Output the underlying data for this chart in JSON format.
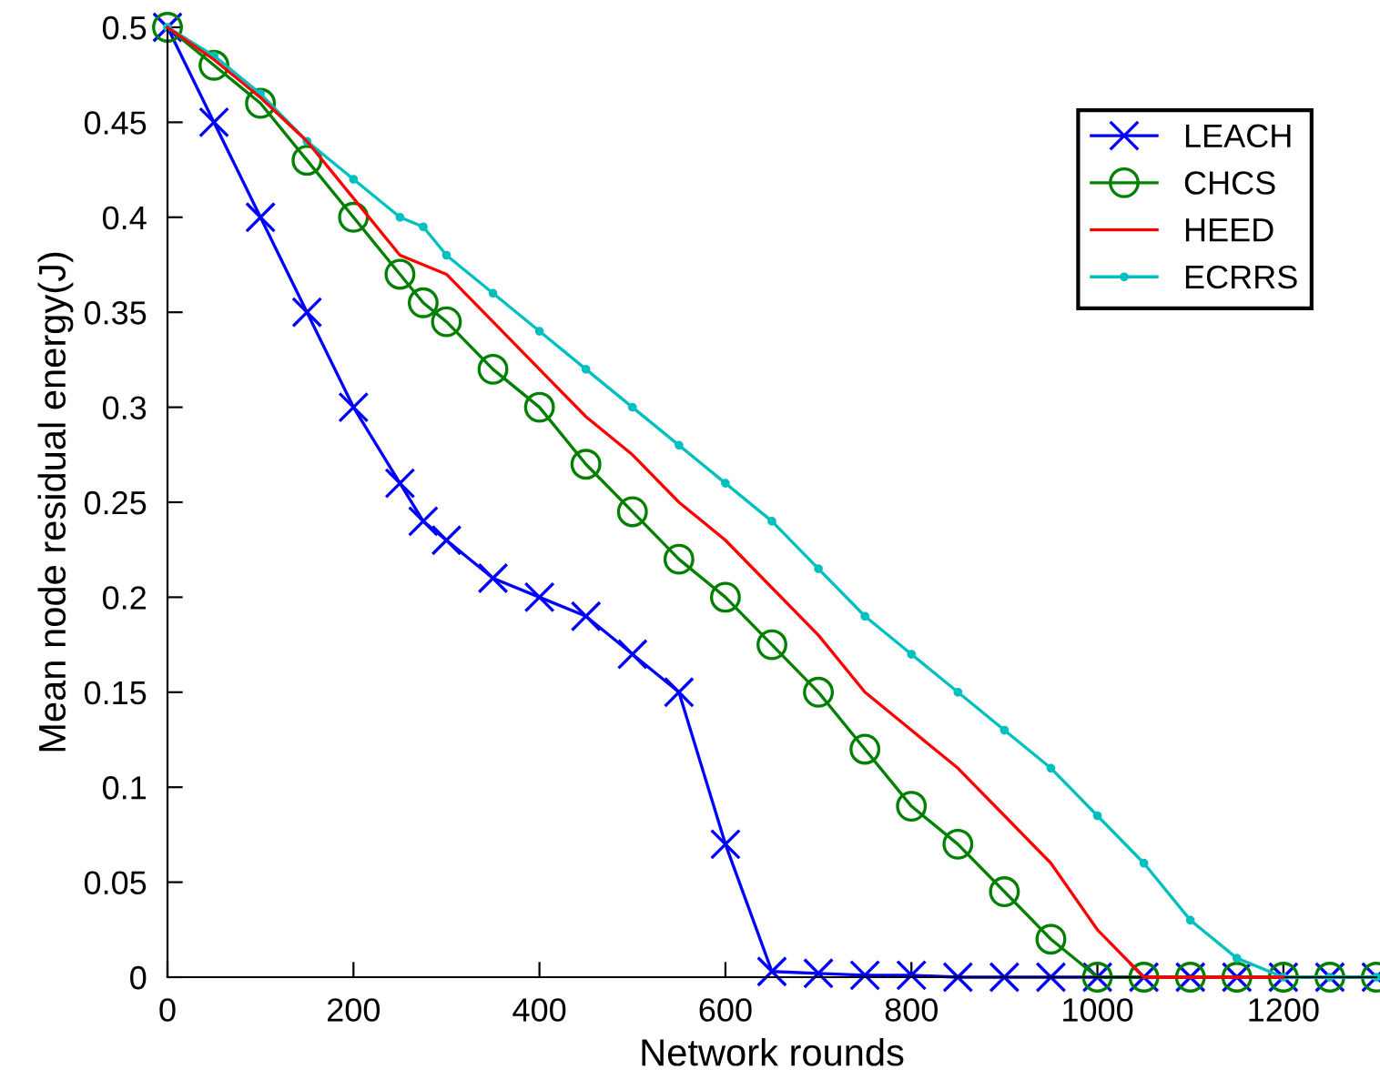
{
  "chart_data": {
    "type": "line",
    "xlabel": "Network rounds",
    "ylabel": "Mean node residual energy(J)",
    "xlim": [
      0,
      1300
    ],
    "xticks": [
      0,
      200,
      400,
      600,
      800,
      1000,
      1200
    ],
    "ylim": [
      0,
      0.5
    ],
    "yticks": [
      0,
      0.05,
      0.1,
      0.15,
      0.2,
      0.25,
      0.3,
      0.35,
      0.4,
      0.45,
      0.5
    ],
    "grid": false,
    "legend": "top right",
    "series": [
      {
        "name": "LEACH",
        "color": "#0000ff",
        "marker": "cross",
        "x": [
          0,
          50,
          100,
          150,
          200,
          250,
          275,
          300,
          350,
          400,
          450,
          500,
          550,
          600,
          650,
          700,
          750,
          800,
          850,
          900,
          950,
          1000,
          1050,
          1100,
          1150,
          1200,
          1250,
          1300
        ],
        "values": [
          0.5,
          0.45,
          0.4,
          0.35,
          0.3,
          0.26,
          0.24,
          0.23,
          0.21,
          0.2,
          0.19,
          0.17,
          0.15,
          0.07,
          0.003,
          0.002,
          0.001,
          0.001,
          0,
          0,
          0,
          0,
          0,
          0,
          0,
          0,
          0,
          0
        ]
      },
      {
        "name": "CHCS",
        "color": "#008000",
        "marker": "circle",
        "x": [
          0,
          50,
          100,
          150,
          200,
          250,
          275,
          300,
          350,
          400,
          450,
          500,
          550,
          600,
          650,
          700,
          750,
          800,
          850,
          900,
          950,
          1000,
          1050,
          1100,
          1150,
          1200,
          1250,
          1300
        ],
        "values": [
          0.5,
          0.48,
          0.46,
          0.43,
          0.4,
          0.37,
          0.355,
          0.345,
          0.32,
          0.3,
          0.27,
          0.245,
          0.22,
          0.2,
          0.175,
          0.15,
          0.12,
          0.09,
          0.07,
          0.045,
          0.02,
          0,
          0,
          0,
          0,
          0,
          0,
          0
        ]
      },
      {
        "name": "HEED",
        "color": "#ff0000",
        "marker": "none",
        "x": [
          0,
          50,
          100,
          150,
          200,
          250,
          300,
          350,
          400,
          450,
          500,
          550,
          600,
          650,
          700,
          750,
          800,
          850,
          900,
          950,
          1000,
          1050,
          1100,
          1150,
          1200
        ],
        "values": [
          0.5,
          0.483,
          0.463,
          0.44,
          0.41,
          0.38,
          0.37,
          0.345,
          0.32,
          0.295,
          0.275,
          0.25,
          0.23,
          0.205,
          0.18,
          0.15,
          0.13,
          0.11,
          0.085,
          0.06,
          0.025,
          0,
          0,
          0,
          0
        ]
      },
      {
        "name": "ECRRS",
        "color": "#00bfbf",
        "marker": "point",
        "x": [
          0,
          50,
          100,
          150,
          200,
          250,
          275,
          300,
          350,
          400,
          450,
          500,
          550,
          600,
          650,
          700,
          750,
          800,
          850,
          900,
          950,
          1000,
          1050,
          1100,
          1150,
          1200,
          1250,
          1300
        ],
        "values": [
          0.5,
          0.485,
          0.465,
          0.44,
          0.42,
          0.4,
          0.395,
          0.38,
          0.36,
          0.34,
          0.32,
          0.3,
          0.28,
          0.26,
          0.24,
          0.215,
          0.19,
          0.17,
          0.15,
          0.13,
          0.11,
          0.085,
          0.06,
          0.03,
          0.01,
          0,
          0,
          0
        ]
      }
    ]
  }
}
